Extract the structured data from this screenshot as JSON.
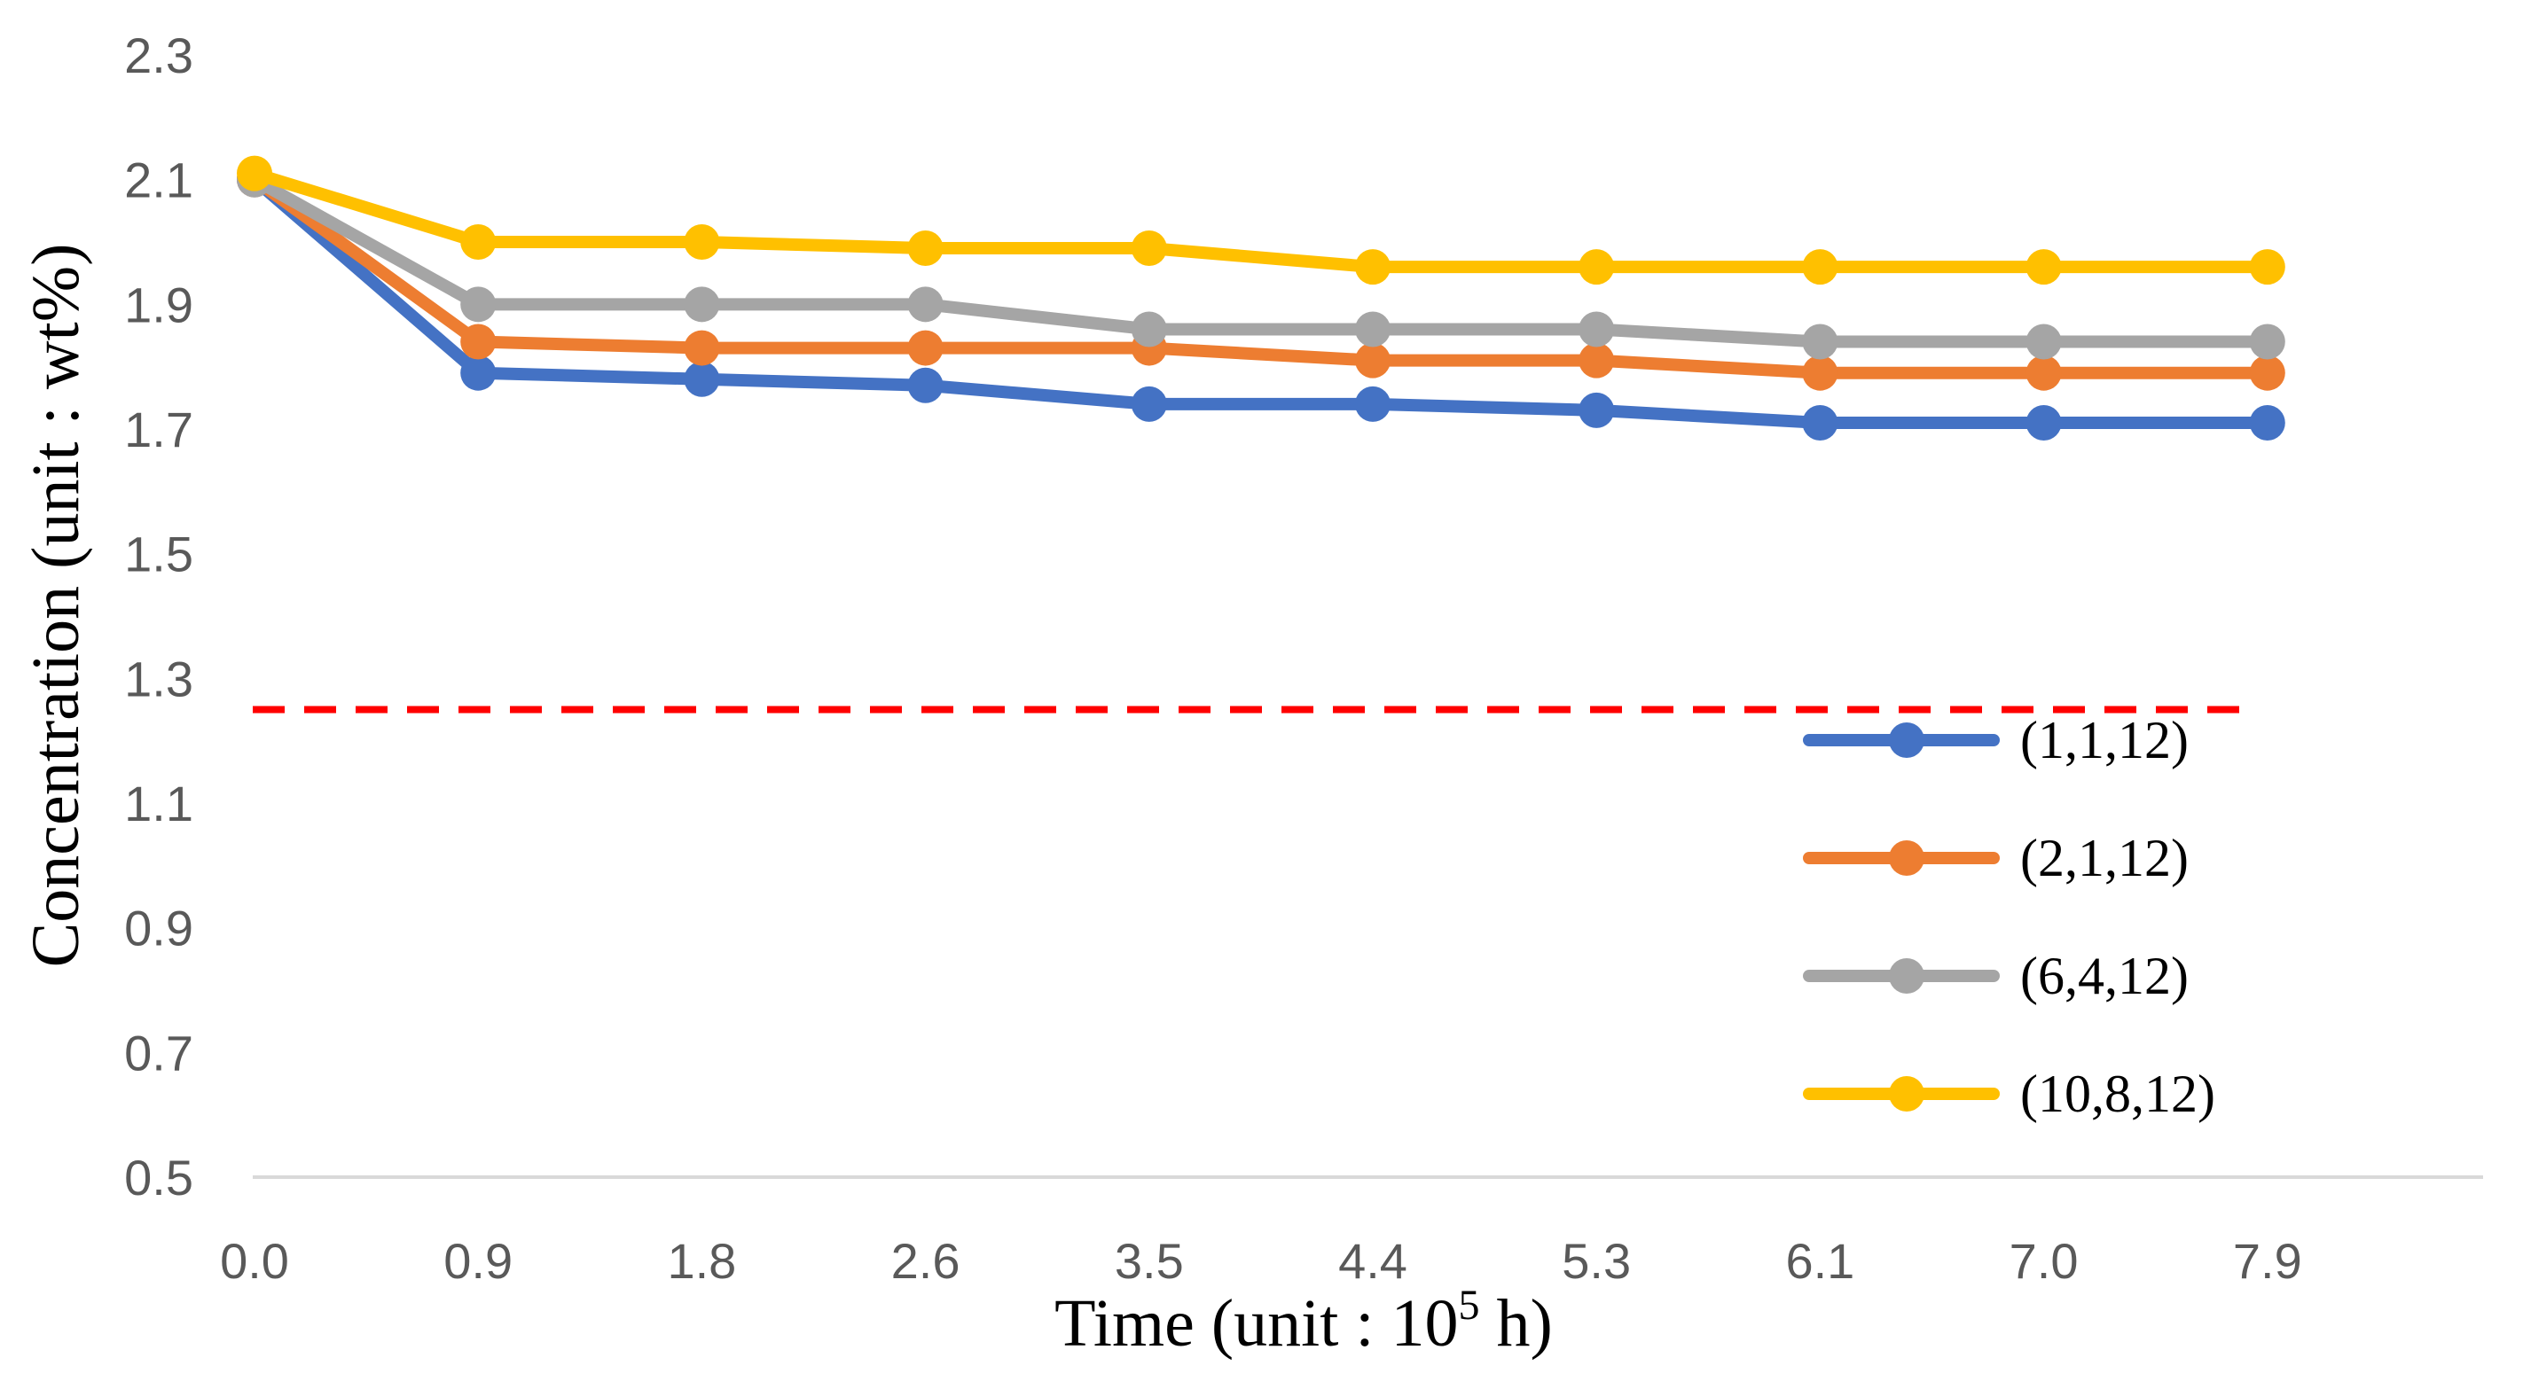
{
  "chart_data": {
    "type": "line",
    "title": "",
    "xlabel": "Time (unit : 10",
    "xlabel_sup": "5",
    "xlabel_end": " h)",
    "ylabel": "Concentration (unit : wt%)",
    "ylim": [
      0.5,
      2.3
    ],
    "yticks": [
      0.5,
      0.7,
      0.9,
      1.1,
      1.3,
      1.5,
      1.7,
      1.9,
      2.1,
      2.3
    ],
    "ytick_labels": [
      "0.5",
      "0.7",
      "0.9",
      "1.1",
      "1.3",
      "1.5",
      "1.7",
      "1.9",
      "2.1",
      "2.3"
    ],
    "categories": [
      "0.0",
      "0.9",
      "1.8",
      "2.6",
      "3.5",
      "4.4",
      "5.3",
      "6.1",
      "7.0",
      "7.9"
    ],
    "grid": false,
    "legend_position": "bottom-right",
    "series": [
      {
        "name": "(1,1,12)",
        "color": "#4472C4",
        "values": [
          2.1,
          1.79,
          1.78,
          1.77,
          1.74,
          1.74,
          1.73,
          1.71,
          1.71,
          1.71
        ]
      },
      {
        "name": "(2,1,12)",
        "color": "#ED7D31",
        "values": [
          2.1,
          1.84,
          1.83,
          1.83,
          1.83,
          1.81,
          1.81,
          1.79,
          1.79,
          1.79
        ]
      },
      {
        "name": "(6,4,12)",
        "color": "#A5A5A5",
        "values": [
          2.1,
          1.9,
          1.9,
          1.9,
          1.86,
          1.86,
          1.86,
          1.84,
          1.84,
          1.84
        ]
      },
      {
        "name": "(10,8,12)",
        "color": "#FFC000",
        "values": [
          2.11,
          2.0,
          2.0,
          1.99,
          1.99,
          1.96,
          1.96,
          1.96,
          1.96,
          1.96
        ]
      }
    ],
    "reference_line": {
      "value": 1.25,
      "color": "#FF0000",
      "style": "dashed"
    }
  }
}
